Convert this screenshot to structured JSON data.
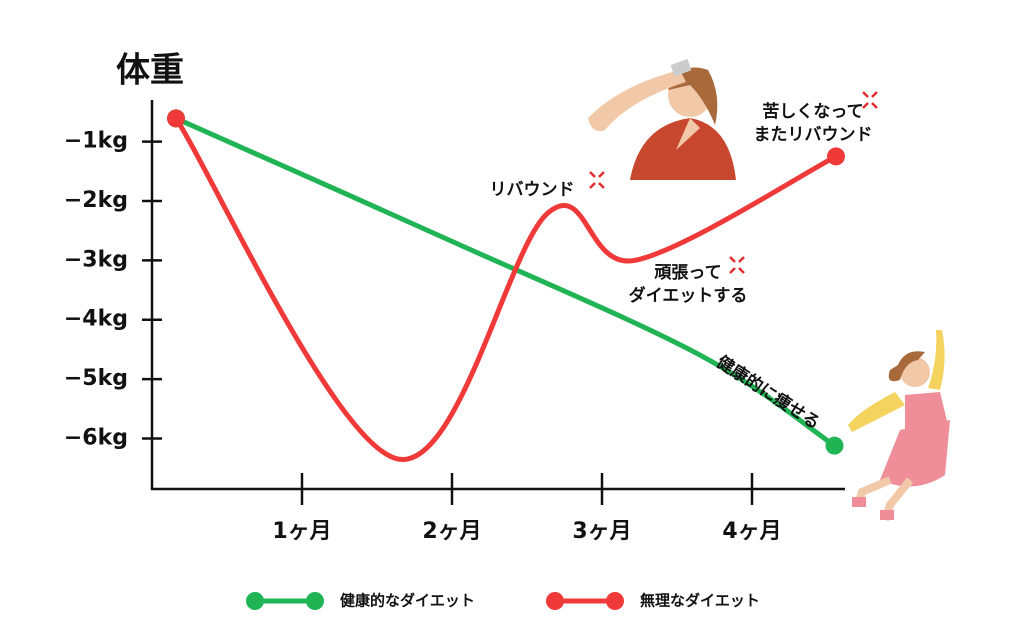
{
  "chart_data": {
    "type": "line",
    "y_label": "体重",
    "xlim": [
      0,
      4.6
    ],
    "xticks": [
      {
        "value": 1,
        "label": "1ヶ月"
      },
      {
        "value": 2,
        "label": "2ヶ月"
      },
      {
        "value": 3,
        "label": "3ヶ月"
      },
      {
        "value": 4,
        "label": "4ヶ月"
      }
    ],
    "ylim": [
      -6.85,
      -0.3
    ],
    "yticks": [
      {
        "value": -1,
        "label": "−1kg"
      },
      {
        "value": -2,
        "label": "−2kg"
      },
      {
        "value": -3,
        "label": "−3kg"
      },
      {
        "value": -4,
        "label": "−4kg"
      },
      {
        "value": -5,
        "label": "−5kg"
      },
      {
        "value": -6,
        "label": "−6kg"
      }
    ],
    "series": [
      {
        "name": "健康的なダイエット",
        "color": "#20b455",
        "x": [
          0.16,
          2.0,
          3.65,
          4.55
        ],
        "values": [
          -0.61,
          -2.68,
          -4.59,
          -6.12
        ]
      },
      {
        "name": "無理なダイエット",
        "color": "#f03a3a",
        "x": [
          0.16,
          1.63,
          2.64,
          3.22,
          4.56
        ],
        "values": [
          -0.61,
          -6.34,
          -2.2,
          -3.0,
          -1.25
        ]
      }
    ],
    "annotations": [
      {
        "lines": [
          "リバウンド"
        ]
      },
      {
        "lines": [
          "苦しくなって",
          "またリバウンド"
        ]
      },
      {
        "lines": [
          "頑張って",
          "ダイエットする"
        ]
      },
      {
        "lines": [
          "健康的に痩せる"
        ]
      }
    ]
  }
}
